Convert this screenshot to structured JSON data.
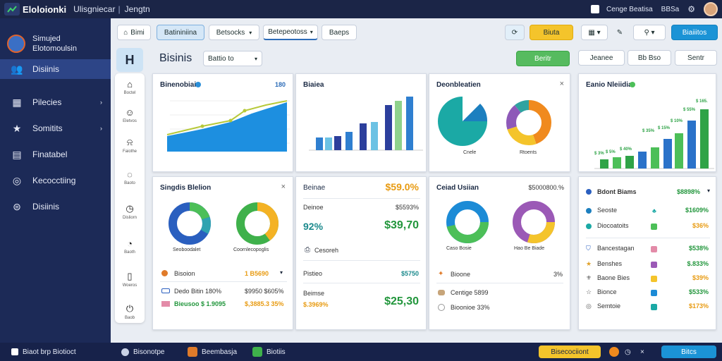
{
  "topbar": {
    "title": "Eloloionki",
    "menu1": "Ulisgniecar",
    "menu2": "Jengtn",
    "right1": "Cenge Beatisa",
    "right2": "BBSa"
  },
  "sidebar": {
    "brand_line1": "Simujed",
    "brand_line2": "Elotomoulsin",
    "items": [
      {
        "label": "Disiinis",
        "icon": "users-icon"
      },
      {
        "label": "Pilecies",
        "icon": "calendar-icon"
      },
      {
        "label": "Somitits",
        "icon": "star-icon"
      },
      {
        "label": "Finatabel",
        "icon": "document-icon"
      },
      {
        "label": "Kecocctiing",
        "icon": "check-circle-icon"
      },
      {
        "label": "Disiinis",
        "icon": "list-icon"
      }
    ]
  },
  "toolbar": {
    "home": "Bimi",
    "b1": "Batininiina",
    "b2": "Betsocks",
    "b3": "Betepeotoss",
    "b4": "Baeps",
    "yellow": "Biuta",
    "blue": "Biaiiitos"
  },
  "subheader": {
    "title": "Bisinis",
    "select": "Battio to",
    "green_btn": "Beritr",
    "btn2": "Jeanee",
    "btn3": "Bb Bso",
    "btn4": "Sentr"
  },
  "rail": {
    "top": "H",
    "items": [
      "Boctel",
      "Eletvos",
      "Faiothe",
      "Baoto",
      "Disliorn",
      "Baoth",
      "Woeros",
      "Baob"
    ]
  },
  "card1": {
    "title": "Binenobiais",
    "value": "180"
  },
  "card2": {
    "title": "Biaiea"
  },
  "card3": {
    "title": "Deonbleatien",
    "legend1": "Cnele",
    "legend2": "Rtoents"
  },
  "card4": {
    "title": "Eanio Nleiidia",
    "labels": [
      "$ 165.",
      "$ 55%",
      "$ 10%",
      "$ 15%",
      "$ 35%",
      "$ 40%",
      "$ 3%",
      "$ 5%"
    ]
  },
  "card5": {
    "title": "Singdis Blelion",
    "legend1": "Seoboodalet",
    "legend2": "Coornlecopoglis",
    "row1_label": "Bisoion",
    "row1_value": "1 B5690",
    "row2_label": "Dedo Bitin 180%",
    "row2_value": "$9950 $605%",
    "row3_label": "Bieusoo $ 1.9095",
    "row3_value": "$,3885.3 35%"
  },
  "card6": {
    "row1_label": "Beinae",
    "row1_value": "$59.0%",
    "row2_label": "Deinoe",
    "row2_value": "$5593%",
    "row3_left": "92%",
    "row3_right": "$39,70",
    "row4_label": "Cesoreh",
    "row5_label": "Pistieo",
    "row5_value": "$5750",
    "row6_label": "Beimse",
    "row6_sub": "$.3969%",
    "row6_value": "$25,30"
  },
  "card7": {
    "title": "Ceiad Usiian",
    "value": "$5000800.%",
    "legend1": "Caso Bosie",
    "legend2": "Hao Be Biade",
    "row1_label": "Bioone",
    "row1_value": "3%",
    "row2_label": "Centige 5899",
    "row3_label": "Bioonioe 33%"
  },
  "card8": {
    "row0_label": "Bdont Biams",
    "row0_value": "$8898%",
    "rows": [
      {
        "label": "Seoste",
        "value": "$1609%"
      },
      {
        "label": "Diocoatoits",
        "value": "$36%"
      },
      {
        "label": "Bancestagan",
        "value": "$538%"
      },
      {
        "label": "Benshes",
        "value": "$.833%"
      },
      {
        "label": "Baone Bies",
        "value": "$39%"
      },
      {
        "label": "Bionce",
        "value": "$533%"
      },
      {
        "label": "Semtoie",
        "value": "$173%"
      }
    ]
  },
  "bottombar": {
    "left": "Biaot brp Biotioct",
    "i1": "Bisonotpe",
    "i2": "Beembasja",
    "i3": "Biotiis",
    "right1": "Bisecociiont",
    "right2": "Bitcs"
  },
  "colors": {
    "primary": "#2c6cb8",
    "green": "#22963c",
    "accent": "#f4c42b",
    "sidebar": "#1c2a57"
  }
}
